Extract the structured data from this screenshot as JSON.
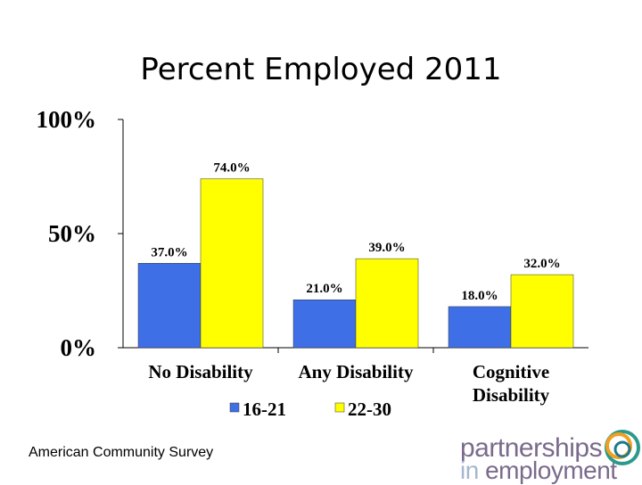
{
  "chart_data": {
    "type": "bar",
    "title": "Percent Employed 2011",
    "categories": [
      "No Disability",
      "Any Disability",
      [
        "Cognitive",
        "Disability"
      ]
    ],
    "category_labels": [
      "No Disability",
      "Any Disability",
      "Cognitive Disability"
    ],
    "series": [
      {
        "name": "16-21",
        "values": [
          37.0,
          21.0,
          18.0
        ],
        "color": "#3e6fe6"
      },
      {
        "name": "22-30",
        "values": [
          74.0,
          39.0,
          32.0
        ],
        "color": "#ffff00"
      }
    ],
    "data_labels": [
      [
        "37.0%",
        "21.0%",
        "18.0%"
      ],
      [
        "74.0%",
        "39.0%",
        "32.0%"
      ]
    ],
    "ylim": [
      0,
      100
    ],
    "yticks": [
      0,
      50,
      100
    ],
    "ytick_labels": [
      "0%",
      "50%",
      "100%"
    ],
    "legend": "bottom",
    "xlabel": "",
    "ylabel": ""
  },
  "source": "American Community Survey",
  "logo": {
    "line1": "partnerships",
    "line2_in": "in",
    "line2_rest": " employment"
  }
}
